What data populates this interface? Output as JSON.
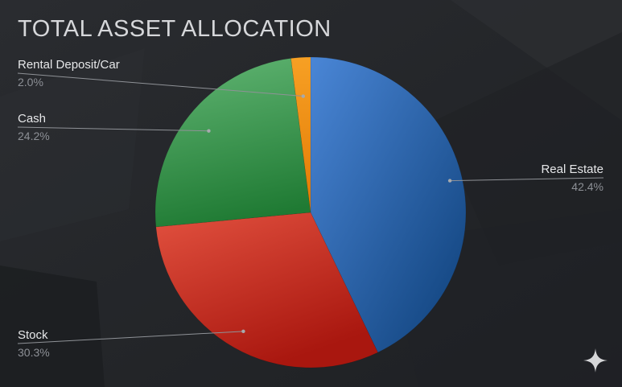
{
  "title": "TOTAL ASSET ALLOCATION",
  "chart_data": {
    "type": "pie",
    "title": "TOTAL ASSET ALLOCATION",
    "slices": [
      {
        "label": "Real Estate",
        "value": 42.4,
        "value_label": "42.4%",
        "color": "#2f66b3"
      },
      {
        "label": "Stock",
        "value": 30.3,
        "value_label": "30.3%",
        "color": "#cf3a2d"
      },
      {
        "label": "Cash",
        "value": 24.2,
        "value_label": "24.2%",
        "color": "#3a9a4c"
      },
      {
        "label": "Rental Deposit/Car",
        "value": 2.0,
        "value_label": "2.0%",
        "color": "#f08c12"
      }
    ],
    "legend": "none",
    "labels": "outside-with-leader-lines"
  },
  "watermark_icon": "sparkle-icon"
}
